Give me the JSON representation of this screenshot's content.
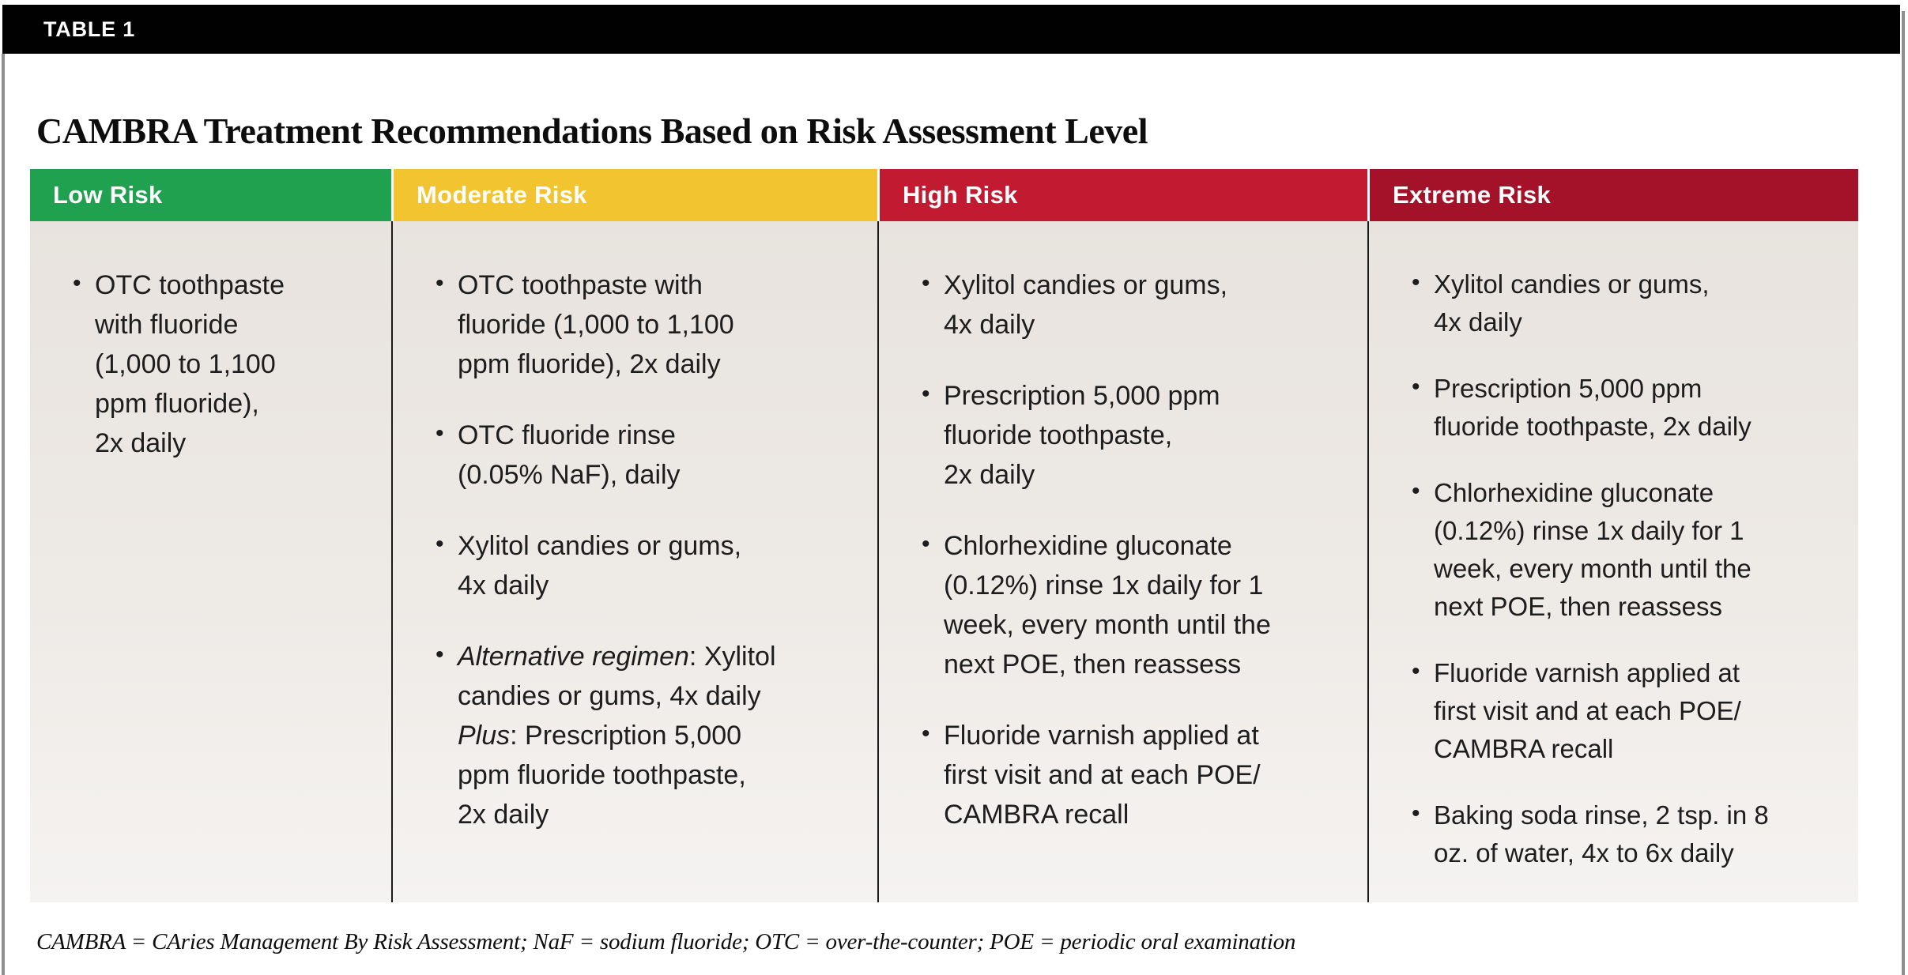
{
  "table_label": "TABLE 1",
  "title": "CAMBRA Treatment Recommendations Based on Risk Assessment Level",
  "footnote": "CAMBRA = CAries Management By Risk Assessment; NaF = sodium fluoride; OTC = over-the-counter; POE = periodic oral examination",
  "colors": {
    "low_risk_green": "#1FA14F",
    "moderate_risk_yellow": "#F2C42F",
    "high_risk_red": "#C21B31",
    "extreme_risk_dark_red": "#A31229",
    "header_text": "#FFFFFF",
    "body_background_top": "#E8E3DE",
    "body_background_bottom": "#F5F3F1",
    "title_bar_black": "#010101"
  },
  "columns": [
    {
      "id": "low-risk",
      "header": "Low Risk",
      "header_color": "#1FA14F",
      "compact": false,
      "items": [
        [
          "OTC toothpaste",
          "with fluoride",
          "(1,000 to 1,100",
          "ppm fluoride),",
          "2x daily"
        ]
      ]
    },
    {
      "id": "moderate-risk",
      "header": "Moderate Risk",
      "header_color": "#F2C42F",
      "compact": false,
      "items": [
        [
          "OTC toothpaste with",
          "fluoride (1,000 to 1,100",
          "ppm fluoride), 2x daily"
        ],
        [
          "OTC fluoride rinse",
          "(0.05% NaF), daily"
        ],
        [
          "Xylitol candies or gums,",
          "4x daily"
        ],
        [
          [
            {
              "t": "Alternative regimen",
              "i": true
            },
            {
              "t": ": Xylitol",
              "i": false
            }
          ],
          "candies or gums, 4x daily",
          [
            {
              "t": "Plus",
              "i": true
            },
            {
              "t": ": Prescription 5,000",
              "i": false
            }
          ],
          "ppm fluoride toothpaste,",
          "2x daily"
        ]
      ]
    },
    {
      "id": "high-risk",
      "header": "High Risk",
      "header_color": "#C21B31",
      "compact": false,
      "items": [
        [
          "Xylitol candies or gums,",
          "4x daily"
        ],
        [
          "Prescription 5,000 ppm",
          "fluoride toothpaste,",
          "2x daily"
        ],
        [
          "Chlorhexidine gluconate",
          "(0.12%) rinse 1x daily for 1",
          "week, every month until the",
          "next POE, then reassess"
        ],
        [
          "Fluoride varnish applied at",
          "first visit and at each POE/",
          "CAMBRA recall"
        ]
      ]
    },
    {
      "id": "extreme-risk",
      "header": "Extreme Risk",
      "header_color": "#A31229",
      "compact": true,
      "items": [
        [
          "Xylitol candies or gums,",
          "4x daily"
        ],
        [
          "Prescription 5,000 ppm",
          "fluoride toothpaste, 2x daily"
        ],
        [
          "Chlorhexidine gluconate",
          "(0.12%) rinse 1x daily for 1",
          "week, every month until the",
          "next POE, then reassess"
        ],
        [
          "Fluoride varnish applied at",
          "first visit and at each POE/",
          "CAMBRA recall"
        ],
        [
          "Baking soda rinse, 2 tsp. in 8",
          "oz. of water, 4x to 6x daily"
        ]
      ]
    }
  ]
}
